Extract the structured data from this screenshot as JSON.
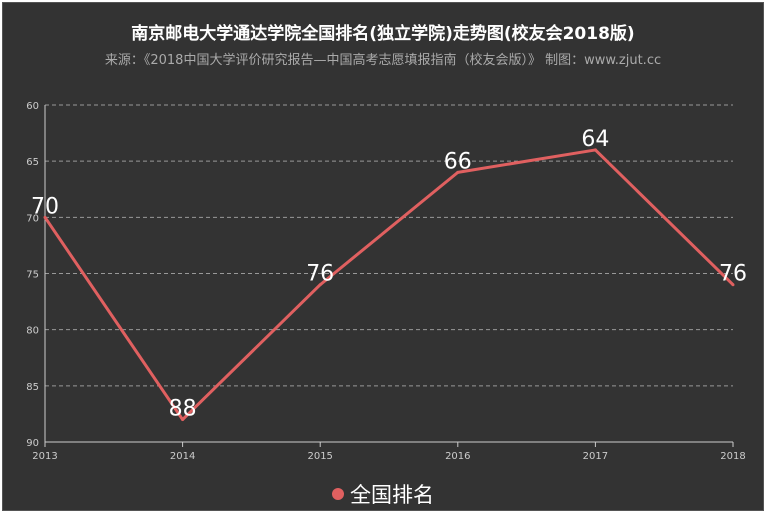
{
  "chart_data": {
    "type": "line",
    "title": "南京邮电大学通达学院全国排名(独立学院)走势图(校友会2018版)",
    "subtitle": "来源：《2018中国大学评价研究报告—中国高考志愿填报指南（校友会版）》 制图：www.zjut.cc",
    "xlabel": "",
    "ylabel": "",
    "categories": [
      "2013",
      "2014",
      "2015",
      "2016",
      "2017",
      "2018"
    ],
    "y_ticks": [
      "60",
      "65",
      "70",
      "75",
      "80",
      "85",
      "90"
    ],
    "ylim": [
      90,
      60
    ],
    "y_inverted": true,
    "grid": true,
    "legend_position": "bottom-center",
    "series": [
      {
        "name": "全国排名",
        "color": "#e06060",
        "values": [
          70,
          88,
          76,
          66,
          64,
          76
        ],
        "data_labels": [
          "70",
          "88",
          "76",
          "66",
          "64",
          "76"
        ]
      }
    ]
  },
  "colors": {
    "background": "#333333",
    "title": "#ffffff",
    "subtitle": "#aaaaaa",
    "axis": "#cccccc",
    "grid": "#999999",
    "line": "#e06060"
  }
}
